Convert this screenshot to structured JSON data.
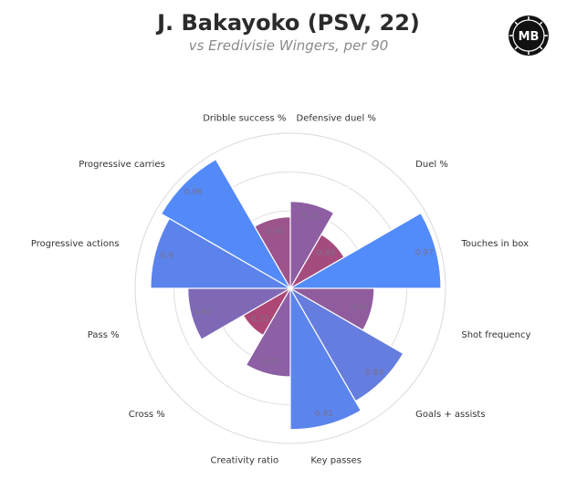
{
  "header": {
    "title": "J. Bakayoko (PSV, 22)",
    "subtitle": "vs Eredivisie Wingers, per 90",
    "logo_text": "MB"
  },
  "chart_data": {
    "type": "polar-bar",
    "title": "J. Bakayoko (PSV, 22)",
    "subtitle": "vs Eredivisie Wingers, per 90",
    "rlim": [
      0,
      1
    ],
    "grid": true,
    "categories": [
      "Defensive duel %",
      "Duel %",
      "Touches in box",
      "Shot frequency",
      "Goals + assists",
      "Key passes",
      "Creativity ratio",
      "Cross %",
      "Pass %",
      "Progressive actions",
      "Progressive carries",
      "Dribble success %"
    ],
    "values": [
      0.56,
      0.4,
      0.97,
      0.54,
      0.84,
      0.91,
      0.57,
      0.35,
      0.66,
      0.9,
      0.96,
      0.46
    ],
    "value_labels": [
      "0.56",
      "0.40",
      "0.97",
      "0.54",
      "0.84",
      "0.91",
      "0.57",
      "0.35",
      "0.66",
      "0.9",
      "0.96",
      "0.46"
    ],
    "color_low": "#b4416a",
    "color_high": "#528bfa",
    "grid_color": "#dedede"
  }
}
